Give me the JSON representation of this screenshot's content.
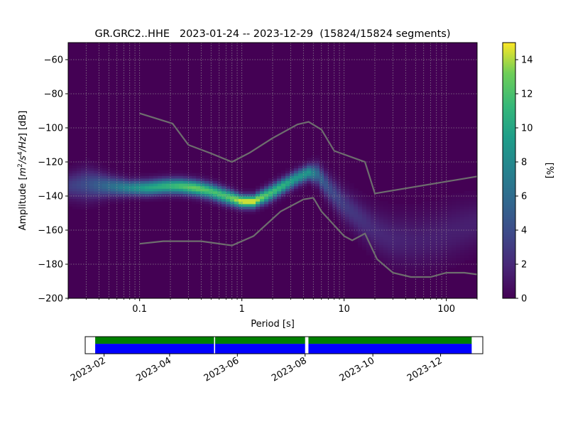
{
  "chart_data": [
    {
      "type": "heatmap",
      "title": "GR.GRC2..HHE   2023-01-24 -- 2023-12-29  (15824/15824 segments)",
      "xlabel": "Period [s]",
      "ylabel_prefix": "Amplitude [",
      "ylabel_unit_base": "m",
      "ylabel_unit_exp1": "2",
      "ylabel_unit_mid": "/s",
      "ylabel_unit_exp2": "4",
      "ylabel_unit_tail": "/Hz",
      "ylabel_suffix": "] [dB]",
      "x_scale": "log",
      "xlim": [
        0.02,
        200
      ],
      "ylim": [
        -200,
        -50
      ],
      "x_ticks": [
        {
          "value": 0.1,
          "label": "0.1"
        },
        {
          "value": 1,
          "label": "1"
        },
        {
          "value": 10,
          "label": "10"
        },
        {
          "value": 100,
          "label": "100"
        }
      ],
      "y_ticks": [
        {
          "value": -60,
          "label": "−60"
        },
        {
          "value": -80,
          "label": "−80"
        },
        {
          "value": -100,
          "label": "−100"
        },
        {
          "value": -120,
          "label": "−120"
        },
        {
          "value": -140,
          "label": "−140"
        },
        {
          "value": -160,
          "label": "−160"
        },
        {
          "value": -180,
          "label": "−180"
        },
        {
          "value": -200,
          "label": "−200"
        }
      ],
      "grid": true,
      "colormap": "viridis",
      "colorbar": {
        "label": "[%]",
        "range": [
          0,
          15
        ],
        "ticks": [
          {
            "value": 0,
            "label": "0"
          },
          {
            "value": 2,
            "label": "2"
          },
          {
            "value": 4,
            "label": "4"
          },
          {
            "value": 6,
            "label": "6"
          },
          {
            "value": 8,
            "label": "8"
          },
          {
            "value": 10,
            "label": "10"
          },
          {
            "value": 12,
            "label": "12"
          },
          {
            "value": 14,
            "label": "14"
          }
        ]
      },
      "density_band": {
        "period": [
          0.02,
          0.03,
          0.05,
          0.08,
          0.12,
          0.18,
          0.25,
          0.35,
          0.5,
          0.7,
          1.0,
          1.3,
          1.8,
          2.5,
          3.5,
          4.5,
          5.5,
          7,
          10,
          15,
          20,
          30,
          50,
          80,
          120,
          200
        ],
        "center_db": [
          -134,
          -133,
          -134,
          -135,
          -135,
          -134,
          -134,
          -135,
          -137,
          -140,
          -143,
          -143,
          -139,
          -134,
          -129,
          -126,
          -127,
          -135,
          -145,
          -154,
          -160,
          -165,
          -166,
          -164,
          -160,
          -156
        ],
        "spread_db": [
          5,
          6,
          4,
          3,
          3,
          3,
          3,
          3,
          3,
          3,
          2.5,
          2.5,
          3,
          3,
          3,
          3,
          4,
          5,
          6,
          7,
          8,
          9,
          10,
          10,
          10,
          9
        ],
        "peak_percent": [
          3,
          4,
          6,
          8,
          10,
          11,
          12,
          13,
          12,
          12,
          15,
          15,
          12,
          11,
          9,
          9,
          6,
          4,
          3,
          2.5,
          2,
          1.8,
          1.5,
          1.5,
          1.5,
          1.5
        ]
      },
      "series": [
        {
          "period": [
            0.1,
            0.21,
            0.3,
            0.5,
            0.8,
            1.2,
            2,
            3.5,
            4.5,
            6,
            8,
            16,
            20,
            200
          ],
          "values": [
            -91.5,
            -97.5,
            -110,
            -115,
            -120,
            -114.5,
            -106,
            -98,
            -96.5,
            -101,
            -113.5,
            -120,
            -138.5,
            -128.5
          ],
          "color": "#6e6e6e"
        },
        {
          "period": [
            0.1,
            0.17,
            0.4,
            0.8,
            1.3,
            2.4,
            4,
            5,
            6,
            10,
            12,
            16,
            21,
            30,
            45,
            70,
            100,
            150,
            200
          ],
          "values": [
            -168,
            -166.5,
            -166.5,
            -169,
            -163.5,
            -149,
            -142,
            -141,
            -149,
            -163.5,
            -166,
            -162,
            -177,
            -185,
            -187.5,
            -187.5,
            -185,
            -185,
            -186
          ],
          "color": "#6e6e6e"
        }
      ]
    },
    {
      "type": "timeline",
      "tick_labels": [
        "2023-02",
        "2023-04",
        "2023-06",
        "2023-08",
        "2023-10",
        "2023-12"
      ],
      "tick_dates": [
        "2023-02-01",
        "2023-04-01",
        "2023-06-01",
        "2023-08-01",
        "2023-10-01",
        "2023-12-01"
      ],
      "range": [
        "2023-01-15",
        "2024-01-08"
      ],
      "segments": [
        {
          "start": "2023-01-24",
          "end": "2023-05-11"
        },
        {
          "start": "2023-05-12",
          "end": "2023-08-01"
        },
        {
          "start": "2023-08-04",
          "end": "2023-12-29"
        }
      ],
      "colors": {
        "top": "#008000",
        "bottom": "#0000ff"
      }
    }
  ]
}
